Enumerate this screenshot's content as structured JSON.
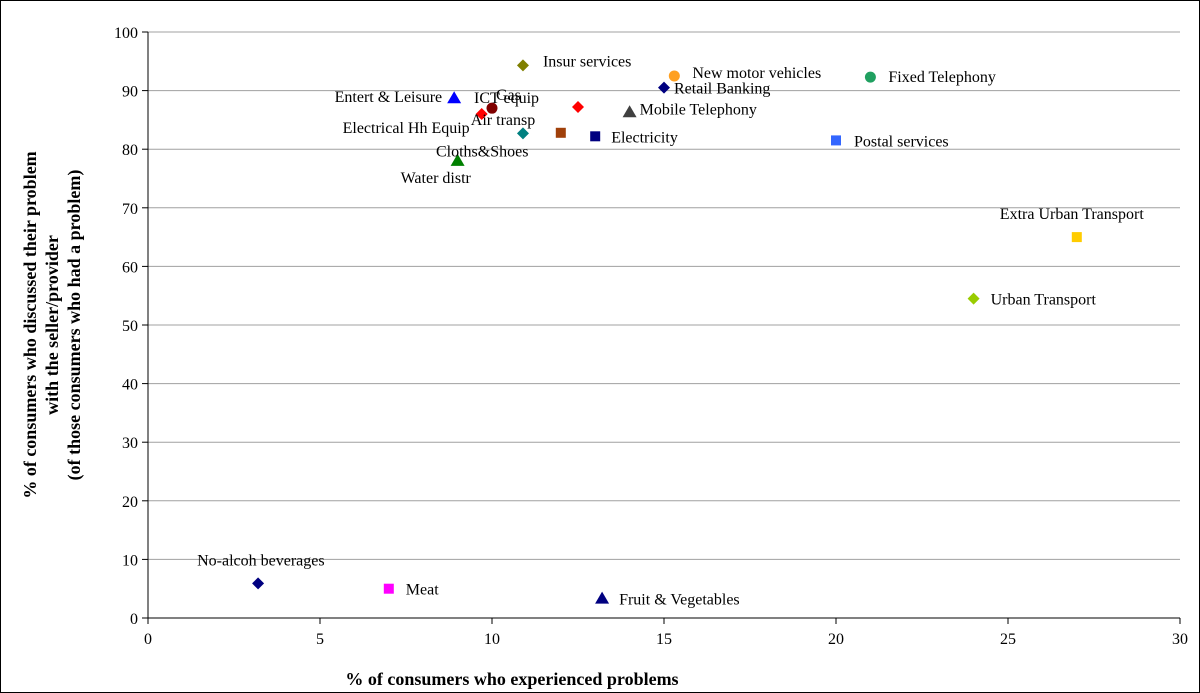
{
  "chart_data": {
    "type": "scatter",
    "xlabel": "% of consumers who experienced problems",
    "ylabel_lines": [
      "% of consumers who discussed their problem",
      "with the seller/provider",
      "(of those consumers who had a problem)"
    ],
    "xlim": [
      0,
      30
    ],
    "ylim": [
      0,
      100
    ],
    "xticks": [
      0,
      5,
      10,
      15,
      20,
      25,
      30
    ],
    "yticks": [
      0,
      10,
      20,
      30,
      40,
      50,
      60,
      70,
      80,
      90,
      100
    ],
    "grid": "horizontal",
    "points": [
      {
        "label": "Insur services",
        "x": 10.9,
        "y": 94.3,
        "marker": "diamond",
        "color": "#7f7f00"
      },
      {
        "label": "New motor vehicles",
        "x": 15.3,
        "y": 92.5,
        "marker": "circle",
        "color": "#ffa020"
      },
      {
        "label": "Fixed Telephony",
        "x": 21.0,
        "y": 92.3,
        "marker": "circle",
        "color": "#20a060"
      },
      {
        "label": "Retail Banking",
        "x": 15.0,
        "y": 90.5,
        "marker": "diamond",
        "color": "#000080"
      },
      {
        "label": "Entert & Leisure",
        "x": 8.9,
        "y": 88.7,
        "marker": "triangle",
        "color": "#0000ff"
      },
      {
        "label": "Gas",
        "x": 10.0,
        "y": 87.0,
        "marker": "circle",
        "color": "#800000"
      },
      {
        "label": "ICT  equip",
        "x": 12.5,
        "y": 87.2,
        "marker": "diamond",
        "color": "#ff0000"
      },
      {
        "label": "Mobile Telephony",
        "x": 14.0,
        "y": 86.3,
        "marker": "triangle",
        "color": "#404040"
      },
      {
        "label": "Electrical Hh Equip",
        "x": 9.7,
        "y": 86.0,
        "marker": "diamond",
        "color": "#ff0000"
      },
      {
        "label": "Air transp",
        "x": 12.0,
        "y": 82.8,
        "marker": "square",
        "color": "#a0400a"
      },
      {
        "label": "Cloths&Shoes",
        "x": 10.9,
        "y": 82.7,
        "marker": "diamond",
        "color": "#008080"
      },
      {
        "label": "Electricity",
        "x": 13.0,
        "y": 82.2,
        "marker": "square",
        "color": "#000080"
      },
      {
        "label": "Postal services",
        "x": 20.0,
        "y": 81.5,
        "marker": "square",
        "color": "#3366ff"
      },
      {
        "label": "Water distr",
        "x": 9.0,
        "y": 78.0,
        "marker": "triangle",
        "color": "#008000"
      },
      {
        "label": "Extra Urban Transport",
        "x": 27.0,
        "y": 65.0,
        "marker": "square",
        "color": "#ffcc00"
      },
      {
        "label": "Urban Transport",
        "x": 24.0,
        "y": 54.5,
        "marker": "diamond",
        "color": "#99cc00"
      },
      {
        "label": "No-alcoh beverages",
        "x": 3.2,
        "y": 5.9,
        "marker": "diamond",
        "color": "#000080"
      },
      {
        "label": "Meat",
        "x": 7.0,
        "y": 5.0,
        "marker": "square",
        "color": "#ff00ff"
      },
      {
        "label": "Fruit & Vegetables",
        "x": 13.2,
        "y": 3.3,
        "marker": "triangle",
        "color": "#000080"
      }
    ]
  }
}
